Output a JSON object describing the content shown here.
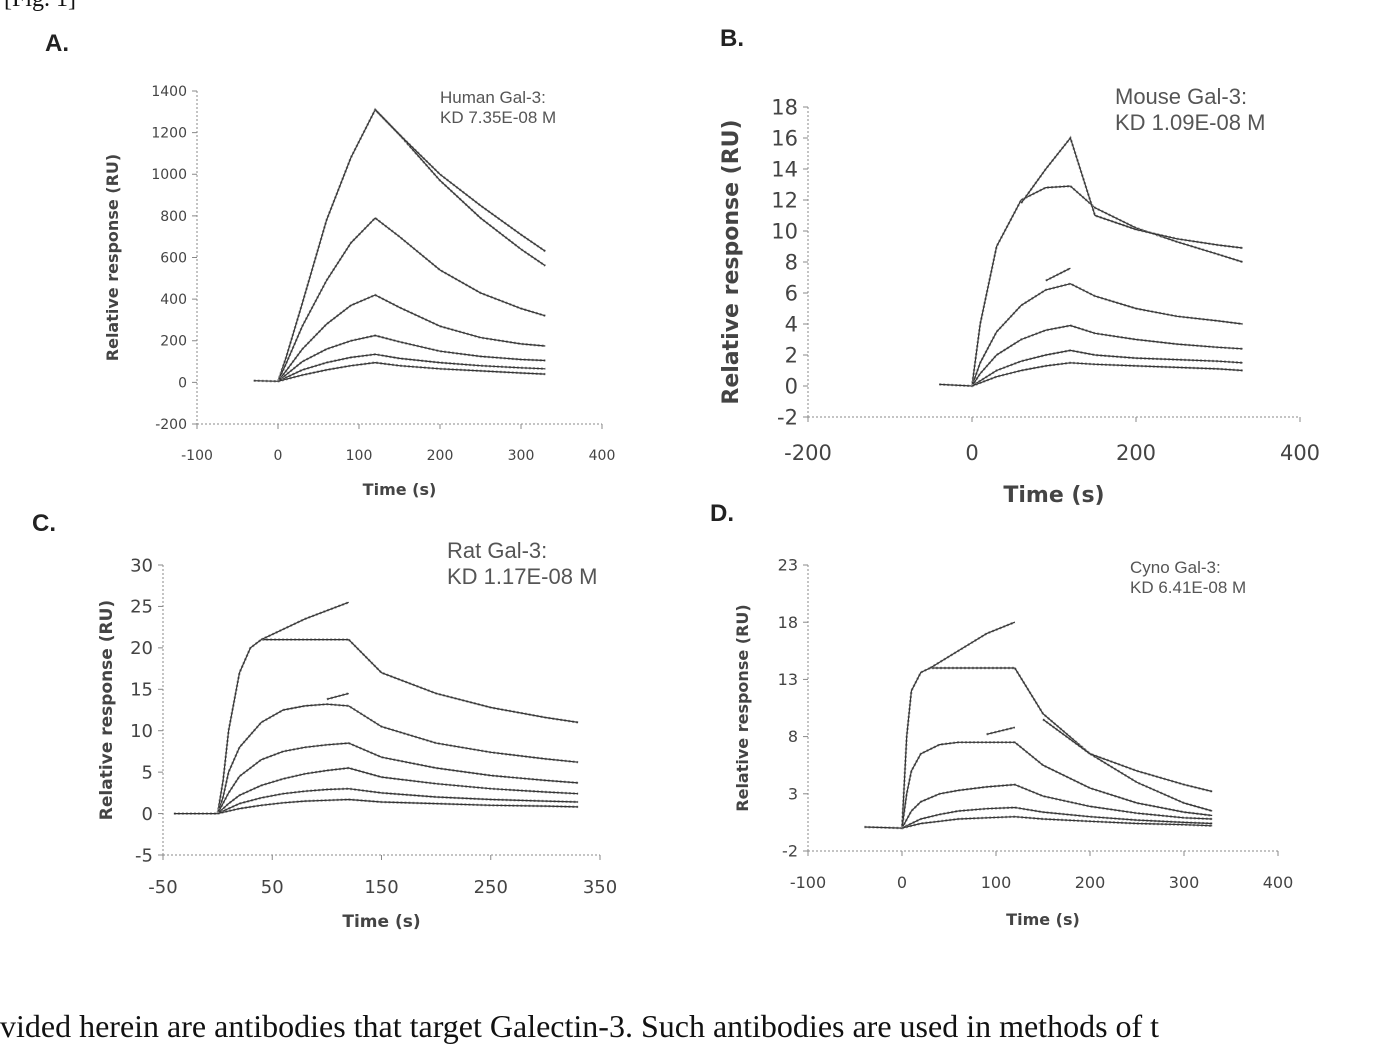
{
  "page_fragment_top": "[Fig. 1]",
  "chart_data": [
    {
      "type": "line",
      "panel_label": "A.",
      "annotation": [
        "Human Gal-3:",
        "KD 7.35E-08 M"
      ],
      "xlabel": "Time (s)",
      "ylabel": "Relative response (RU)",
      "xlim": [
        -100,
        400
      ],
      "ylim": [
        -200,
        1400
      ],
      "xticks": [
        -100,
        0,
        100,
        200,
        300,
        400
      ],
      "yticks": [
        -200,
        0,
        200,
        400,
        600,
        800,
        1000,
        1200,
        1400
      ],
      "curves": [
        {
          "x": [
            -30,
            0,
            10,
            30,
            60,
            90,
            120,
            150,
            200,
            250,
            300,
            330
          ],
          "y": [
            8,
            5,
            120,
            380,
            780,
            1080,
            1310,
            1190,
            970,
            790,
            640,
            560
          ]
        },
        {
          "x": [
            120,
            150,
            200,
            250,
            300,
            330
          ],
          "y": [
            1310,
            1190,
            1000,
            850,
            710,
            630
          ]
        },
        {
          "x": [
            0,
            10,
            30,
            60,
            90,
            120,
            150,
            200,
            250,
            300,
            330
          ],
          "y": [
            5,
            90,
            270,
            490,
            670,
            790,
            700,
            540,
            430,
            355,
            320
          ]
        },
        {
          "x": [
            0,
            10,
            30,
            60,
            90,
            120,
            150,
            200,
            250,
            300,
            330
          ],
          "y": [
            5,
            55,
            160,
            280,
            370,
            420,
            360,
            270,
            215,
            185,
            175
          ]
        },
        {
          "x": [
            0,
            30,
            60,
            90,
            120,
            150,
            200,
            250,
            300,
            330
          ],
          "y": [
            5,
            100,
            160,
            200,
            225,
            195,
            150,
            125,
            110,
            105
          ]
        },
        {
          "x": [
            0,
            30,
            60,
            90,
            120,
            150,
            200,
            250,
            300,
            330
          ],
          "y": [
            5,
            60,
            95,
            120,
            135,
            115,
            95,
            80,
            70,
            65
          ]
        },
        {
          "x": [
            0,
            30,
            60,
            90,
            120,
            150,
            200,
            250,
            300,
            330
          ],
          "y": [
            5,
            35,
            60,
            80,
            95,
            80,
            65,
            55,
            45,
            40
          ]
        }
      ]
    },
    {
      "type": "line",
      "panel_label": "B.",
      "annotation": [
        "Mouse Gal-3:",
        "KD 1.09E-08 M"
      ],
      "xlabel": "Time (s)",
      "ylabel": "Relative response (RU)",
      "xlim": [
        -200,
        400
      ],
      "ylim": [
        -2,
        18
      ],
      "xticks": [
        -200,
        0,
        200,
        400
      ],
      "yticks": [
        -2,
        0,
        2,
        4,
        6,
        8,
        10,
        12,
        14,
        16,
        18
      ],
      "curves": [
        {
          "x": [
            -40,
            0,
            10,
            30,
            60,
            90,
            120
          ],
          "y": [
            0.1,
            0,
            4,
            9,
            12,
            12.8,
            12.9
          ]
        },
        {
          "x": [
            120,
            150,
            200,
            250,
            300,
            330
          ],
          "y": [
            12.9,
            11.5,
            10.2,
            9.3,
            8.5,
            8.0
          ]
        },
        {
          "x": [
            60,
            90,
            120,
            150,
            200,
            250,
            300,
            330
          ],
          "y": [
            11.8,
            14,
            16,
            11,
            10.1,
            9.5,
            9.1,
            8.9
          ]
        },
        {
          "x": [
            0,
            10,
            30,
            60,
            90,
            120,
            150,
            200,
            250,
            300,
            330
          ],
          "y": [
            0,
            1.5,
            3.5,
            5.2,
            6.2,
            6.6,
            5.8,
            5.0,
            4.5,
            4.2,
            4.0
          ]
        },
        {
          "x": [
            90,
            120
          ],
          "y": [
            6.8,
            7.6
          ]
        },
        {
          "x": [
            0,
            10,
            30,
            60,
            90,
            120,
            150,
            200,
            250,
            300,
            330
          ],
          "y": [
            0,
            0.8,
            2.0,
            3.0,
            3.6,
            3.9,
            3.4,
            3.0,
            2.7,
            2.5,
            2.4
          ]
        },
        {
          "x": [
            0,
            30,
            60,
            90,
            120,
            150,
            200,
            250,
            300,
            330
          ],
          "y": [
            0,
            1.0,
            1.6,
            2.0,
            2.3,
            2.0,
            1.8,
            1.7,
            1.6,
            1.5
          ]
        },
        {
          "x": [
            0,
            30,
            60,
            90,
            120,
            150,
            200,
            250,
            300,
            330
          ],
          "y": [
            0,
            0.6,
            1.0,
            1.3,
            1.5,
            1.4,
            1.3,
            1.2,
            1.1,
            1.0
          ]
        }
      ]
    },
    {
      "type": "line",
      "panel_label": "C.",
      "annotation": [
        "Rat Gal-3:",
        "KD 1.17E-08 M"
      ],
      "xlabel": "Time (s)",
      "ylabel": "Relative response (RU)",
      "xlim": [
        -50,
        350
      ],
      "ylim": [
        -5,
        30
      ],
      "xticks": [
        -50,
        50,
        150,
        250,
        350
      ],
      "yticks": [
        -5,
        0,
        5,
        10,
        15,
        20,
        25,
        30
      ],
      "curves": [
        {
          "x": [
            -40,
            0,
            5,
            10,
            20,
            30,
            40,
            80,
            120
          ],
          "y": [
            0,
            0,
            4,
            10,
            17,
            20,
            21,
            21,
            21
          ]
        },
        {
          "x": [
            120,
            150,
            200,
            250,
            300,
            330
          ],
          "y": [
            21,
            17,
            14.5,
            12.8,
            11.6,
            11
          ]
        },
        {
          "x": [
            40,
            80,
            120
          ],
          "y": [
            21,
            23.5,
            25.5
          ]
        },
        {
          "x": [
            0,
            5,
            10,
            20,
            40,
            60,
            80,
            100,
            120,
            150,
            200,
            250,
            300,
            330
          ],
          "y": [
            0,
            2,
            5,
            8,
            11,
            12.5,
            13,
            13.2,
            13,
            10.5,
            8.5,
            7.4,
            6.6,
            6.2
          ]
        },
        {
          "x": [
            100,
            120
          ],
          "y": [
            13.8,
            14.5
          ]
        },
        {
          "x": [
            0,
            10,
            20,
            40,
            60,
            80,
            100,
            120,
            150,
            200,
            250,
            300,
            330
          ],
          "y": [
            0,
            2.5,
            4.5,
            6.5,
            7.5,
            8,
            8.3,
            8.5,
            6.8,
            5.5,
            4.6,
            4.0,
            3.7
          ]
        },
        {
          "x": [
            0,
            10,
            20,
            40,
            60,
            80,
            100,
            120,
            150,
            200,
            250,
            300,
            330
          ],
          "y": [
            0,
            1.2,
            2.2,
            3.4,
            4.2,
            4.8,
            5.2,
            5.5,
            4.4,
            3.6,
            3.0,
            2.6,
            2.4
          ]
        },
        {
          "x": [
            0,
            20,
            40,
            60,
            80,
            100,
            120,
            150,
            200,
            250,
            300,
            330
          ],
          "y": [
            0,
            1.2,
            1.9,
            2.4,
            2.7,
            2.9,
            3.0,
            2.5,
            2.0,
            1.7,
            1.5,
            1.4
          ]
        },
        {
          "x": [
            0,
            20,
            40,
            60,
            80,
            100,
            120,
            150,
            200,
            250,
            300,
            330
          ],
          "y": [
            0,
            0.6,
            1.0,
            1.3,
            1.5,
            1.6,
            1.7,
            1.4,
            1.2,
            1.0,
            0.9,
            0.8
          ]
        }
      ]
    },
    {
      "type": "line",
      "panel_label": "D.",
      "annotation": [
        "Cyno Gal-3:",
        "KD 6.41E-08 M"
      ],
      "xlabel": "Time (s)",
      "ylabel": "Relative response (RU)",
      "xlim": [
        -100,
        400
      ],
      "ylim": [
        -2,
        23
      ],
      "xticks": [
        -100,
        0,
        100,
        200,
        300,
        400
      ],
      "yticks": [
        -2,
        3,
        8,
        13,
        18,
        23
      ],
      "curves": [
        {
          "x": [
            -40,
            0,
            5,
            10,
            20,
            30,
            60,
            90,
            120
          ],
          "y": [
            0.1,
            0,
            8,
            12,
            13.6,
            14,
            14,
            14,
            14
          ]
        },
        {
          "x": [
            120,
            150,
            200,
            250,
            300,
            330
          ],
          "y": [
            14,
            10,
            6.5,
            4,
            2.2,
            1.5
          ]
        },
        {
          "x": [
            30,
            60,
            90,
            120
          ],
          "y": [
            14,
            15.5,
            17,
            18
          ]
        },
        {
          "x": [
            150,
            200,
            250,
            300,
            330
          ],
          "y": [
            9.5,
            6.5,
            5,
            3.8,
            3.2
          ]
        },
        {
          "x": [
            0,
            5,
            10,
            20,
            40,
            60,
            90,
            120,
            150,
            200,
            250,
            300,
            330
          ],
          "y": [
            0,
            3,
            5,
            6.5,
            7.3,
            7.5,
            7.5,
            7.5,
            5.5,
            3.5,
            2.2,
            1.4,
            1.1
          ]
        },
        {
          "x": [
            90,
            120
          ],
          "y": [
            8.2,
            8.8
          ]
        },
        {
          "x": [
            0,
            10,
            20,
            40,
            60,
            90,
            120,
            150,
            200,
            250,
            300,
            330
          ],
          "y": [
            0,
            1.5,
            2.3,
            3.0,
            3.3,
            3.6,
            3.8,
            2.8,
            1.9,
            1.3,
            0.9,
            0.8
          ]
        },
        {
          "x": [
            0,
            20,
            40,
            60,
            90,
            120,
            150,
            200,
            250,
            300,
            330
          ],
          "y": [
            0,
            0.8,
            1.2,
            1.5,
            1.7,
            1.8,
            1.4,
            1.0,
            0.7,
            0.5,
            0.4
          ]
        },
        {
          "x": [
            0,
            20,
            40,
            60,
            90,
            120,
            150,
            200,
            250,
            300,
            330
          ],
          "y": [
            0,
            0.4,
            0.6,
            0.8,
            0.9,
            1.0,
            0.8,
            0.6,
            0.4,
            0.3,
            0.2
          ]
        }
      ]
    }
  ],
  "page_text_bottom": "vided herein are antibodies that target Galectin-3. Such antibodies are used in methods of t"
}
